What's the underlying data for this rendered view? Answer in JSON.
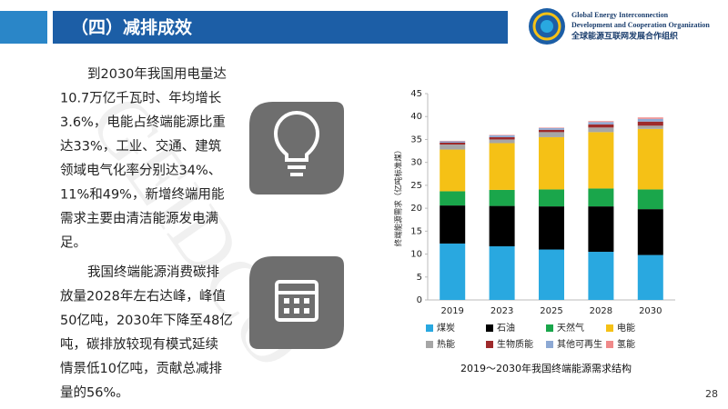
{
  "header": {
    "title": "（四）减排成效"
  },
  "logo": {
    "line1": "Global Energy Interconnection",
    "line2": "Development and Cooperation Organization",
    "line3": "全球能源互联网发展合作组织"
  },
  "watermark": "GEIDCO",
  "paragraphs": [
    {
      "lines": [
        "到2030年我国用电量达",
        "10.7万亿千瓦时、年均增长",
        "3.6%，电能占终端能源比重",
        "达33%，工业、交通、建筑",
        "领域电气化率分别达34%、",
        "11%和49%，新增终端用能",
        "需求主要由清洁能源发电满",
        "足。"
      ]
    },
    {
      "lines": [
        "我国终端能源消费碳排",
        "放量2028年左右达峰，峰值",
        "50亿吨，2030年下降至48亿",
        "吨，碳排放较现有模式延续",
        "情景低10亿吨，贡献总减排",
        "量的56%。"
      ]
    }
  ],
  "page_number": "28",
  "chart_data": {
    "type": "stacked-bar",
    "title": "2019～2030年我国终端能源需求结构",
    "y_label": "终端能源需求（亿吨标准煤）",
    "categories": [
      "2019",
      "2023",
      "2025",
      "2028",
      "2030"
    ],
    "series": [
      {
        "name": "煤炭",
        "color": "#29a8e0",
        "values": [
          12.3,
          11.7,
          11.0,
          10.5,
          9.8
        ]
      },
      {
        "name": "石油",
        "color": "#000000",
        "values": [
          8.3,
          8.8,
          9.4,
          9.9,
          10.0
        ]
      },
      {
        "name": "天然气",
        "color": "#1aa64b",
        "values": [
          3.1,
          3.5,
          3.7,
          3.9,
          4.3
        ]
      },
      {
        "name": "电能",
        "color": "#f5c116",
        "values": [
          9.1,
          10.2,
          11.4,
          12.3,
          13.2
        ]
      },
      {
        "name": "热能",
        "color": "#a6a6a6",
        "values": [
          1.1,
          0.8,
          1.1,
          1.0,
          0.7
        ]
      },
      {
        "name": "生物质能",
        "color": "#9e2a2b",
        "values": [
          0.4,
          0.5,
          0.5,
          0.7,
          0.9
        ]
      },
      {
        "name": "其他可再生",
        "color": "#8da9d4",
        "values": [
          0.3,
          0.4,
          0.4,
          0.5,
          0.6
        ]
      },
      {
        "name": "氢能",
        "color": "#f08a8a",
        "values": [
          0.1,
          0.1,
          0.1,
          0.2,
          0.3
        ]
      }
    ],
    "ylim": [
      0,
      45
    ],
    "yticks": [
      0,
      5,
      10,
      15,
      20,
      25,
      30,
      35,
      40,
      45
    ]
  }
}
